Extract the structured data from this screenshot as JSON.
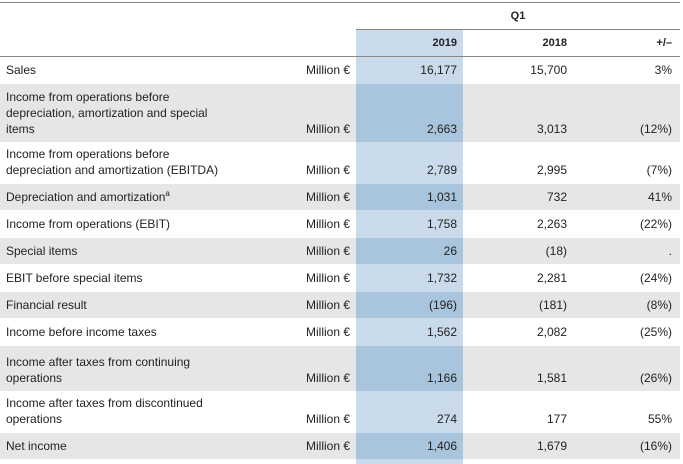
{
  "header": {
    "period": "Q1",
    "columns": [
      "2019",
      "2018",
      "+/–"
    ]
  },
  "table": {
    "rows": [
      {
        "label": "Sales",
        "unit": "Million €",
        "values": [
          "16,177",
          "15,700",
          "3%"
        ]
      },
      {
        "label": "Income from operations before depreciation, amortization and special items",
        "unit": "Million €",
        "values": [
          "2,663",
          "3,013",
          "(12%)"
        ]
      },
      {
        "label": "Income from operations before depreciation and amortization (EBITDA)",
        "unit": "Million €",
        "values": [
          "2,789",
          "2,995",
          "(7%)"
        ]
      },
      {
        "label": "Depreciation and amortization",
        "note": "a",
        "unit": "Million €",
        "values": [
          "1,031",
          "732",
          "41%"
        ]
      },
      {
        "label": "Income from operations (EBIT)",
        "unit": "Million €",
        "values": [
          "1,758",
          "2,263",
          "(22%)"
        ]
      },
      {
        "label": "Special items",
        "unit": "Million €",
        "values": [
          "26",
          "(18)",
          "."
        ]
      },
      {
        "label": "EBIT before special items",
        "unit": "Million €",
        "values": [
          "1,732",
          "2,281",
          "(24%)"
        ]
      },
      {
        "label": "Financial result",
        "unit": "Million €",
        "values": [
          "(196)",
          "(181)",
          "(8%)"
        ]
      },
      {
        "label": "Income before income taxes",
        "unit": "Million €",
        "values": [
          "1,562",
          "2,082",
          "(25%)"
        ]
      },
      {
        "label": "Income after taxes from continuing operations",
        "unit": "Million €",
        "values": [
          "1,166",
          "1,581",
          "(26%)"
        ]
      },
      {
        "label": "Income after taxes from discontinued operations",
        "unit": "Million €",
        "values": [
          "274",
          "177",
          "55%"
        ]
      },
      {
        "label": "Net income",
        "unit": "Million €",
        "values": [
          "1,406",
          "1,679",
          "(16%)"
        ]
      }
    ]
  }
}
